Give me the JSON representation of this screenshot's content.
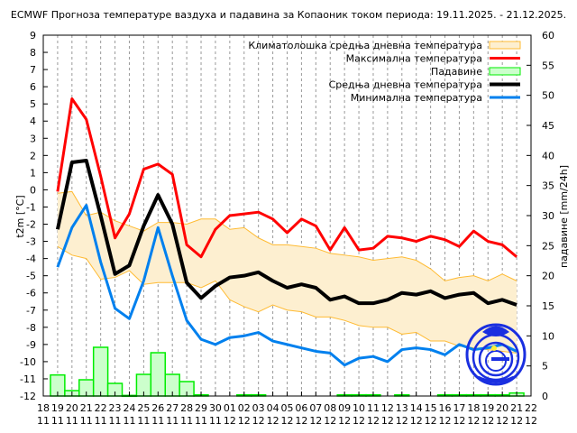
{
  "title": "ECMWF Прогноза температуре ваздуха и падавина за Копаоник током периода: 19.11.2025. - 21.12.2025.",
  "y_left_label": "t2m [°C]",
  "y_right_label": "падавине [mm/24h]",
  "legend": [
    {
      "label": "Климатолошка средња дневна температура",
      "color": "#ffbb33",
      "fill": "#fdefd0",
      "type": "band"
    },
    {
      "label": "Максимална температура",
      "color": "#ff0000",
      "type": "line"
    },
    {
      "label": "Падавине",
      "color": "#00ee00",
      "fill": "#ccffcc",
      "type": "bar"
    },
    {
      "label": "Средња дневна температура",
      "color": "#000000",
      "type": "line"
    },
    {
      "label": "Минимална температура",
      "color": "#0080ee",
      "type": "line"
    }
  ],
  "chart_data": {
    "type": "line",
    "title": "ECMWF Прогноза температуре ваздуха и падавина за Копаоник током периода: 19.11.2025. - 21.12.2025.",
    "xlabel": "",
    "ylabel": "t2m [°C]",
    "y2label": "падавине [mm/24h]",
    "ylim": [
      -12,
      9
    ],
    "y2lim": [
      0,
      60
    ],
    "grid": "vertical dashed at each day",
    "legend_position": "top-right",
    "x_ticks": [
      [
        "18",
        "11"
      ],
      [
        "19",
        "11"
      ],
      [
        "20",
        "11"
      ],
      [
        "21",
        "11"
      ],
      [
        "22",
        "11"
      ],
      [
        "23",
        "11"
      ],
      [
        "24",
        "11"
      ],
      [
        "25",
        "11"
      ],
      [
        "26",
        "11"
      ],
      [
        "27",
        "11"
      ],
      [
        "28",
        "11"
      ],
      [
        "29",
        "11"
      ],
      [
        "30",
        "11"
      ],
      [
        "01",
        "12"
      ],
      [
        "02",
        "12"
      ],
      [
        "03",
        "12"
      ],
      [
        "04",
        "12"
      ],
      [
        "05",
        "12"
      ],
      [
        "06",
        "12"
      ],
      [
        "07",
        "12"
      ],
      [
        "08",
        "12"
      ],
      [
        "09",
        "12"
      ],
      [
        "10",
        "12"
      ],
      [
        "11",
        "12"
      ],
      [
        "12",
        "12"
      ],
      [
        "13",
        "12"
      ],
      [
        "14",
        "12"
      ],
      [
        "15",
        "12"
      ],
      [
        "16",
        "12"
      ],
      [
        "17",
        "12"
      ],
      [
        "18",
        "12"
      ],
      [
        "19",
        "12"
      ],
      [
        "20",
        "12"
      ],
      [
        "21",
        "12"
      ],
      [
        "22",
        "12"
      ]
    ],
    "y_ticks": [
      9,
      8,
      7,
      6,
      5,
      4,
      3,
      2,
      1,
      0,
      -1,
      -2,
      -3,
      -4,
      -5,
      -6,
      -7,
      -8,
      -9,
      -10,
      -11,
      -12
    ],
    "y2_ticks": [
      60,
      55,
      50,
      45,
      40,
      35,
      30,
      25,
      20,
      15,
      10,
      5,
      0
    ],
    "x": [
      "19.11",
      "20.11",
      "21.11",
      "22.11",
      "23.11",
      "24.11",
      "25.11",
      "26.11",
      "27.11",
      "28.11",
      "29.11",
      "30.11",
      "01.12",
      "02.12",
      "03.12",
      "04.12",
      "05.12",
      "06.12",
      "07.12",
      "08.12",
      "09.12",
      "10.12",
      "11.12",
      "12.12",
      "13.12",
      "14.12",
      "15.12",
      "16.12",
      "17.12",
      "18.12",
      "19.12",
      "20.12",
      "21.12"
    ],
    "series": [
      {
        "name": "Максимална температура",
        "axis": "left",
        "values": [
          -0.1,
          5.3,
          4.1,
          0.8,
          -2.8,
          -1.4,
          1.2,
          1.5,
          0.9,
          -3.2,
          -3.9,
          -2.3,
          -1.5,
          -1.4,
          -1.3,
          -1.7,
          -2.5,
          -1.7,
          -2.1,
          -3.5,
          -2.2,
          -3.5,
          -3.4,
          -2.7,
          -2.8,
          -3.0,
          -2.7,
          -2.9,
          -3.3,
          -2.4,
          -3.0,
          -3.2,
          -3.9
        ]
      },
      {
        "name": "Средња дневна температура",
        "axis": "left",
        "values": [
          -2.3,
          1.6,
          1.7,
          -1.5,
          -4.9,
          -4.4,
          -2.1,
          -0.3,
          -2.0,
          -5.4,
          -6.3,
          -5.6,
          -5.1,
          -5.0,
          -4.8,
          -5.3,
          -5.7,
          -5.5,
          -5.7,
          -6.4,
          -6.2,
          -6.6,
          -6.6,
          -6.4,
          -6.0,
          -6.1,
          -5.9,
          -6.3,
          -6.1,
          -6.0,
          -6.6,
          -6.4,
          -6.7
        ]
      },
      {
        "name": "Минимална температура",
        "axis": "left",
        "values": [
          -4.5,
          -2.2,
          -0.9,
          -4.2,
          -6.9,
          -7.5,
          -5.3,
          -2.2,
          -5.0,
          -7.6,
          -8.7,
          -9.0,
          -8.6,
          -8.5,
          -8.3,
          -8.8,
          -9.0,
          -9.2,
          -9.4,
          -9.5,
          -10.2,
          -9.8,
          -9.7,
          -10.0,
          -9.3,
          -9.2,
          -9.3,
          -9.6,
          -9.0,
          -9.3,
          -9.2,
          -9.0,
          -9.4
        ]
      },
      {
        "name": "Климатолошка средња дневна температура (горња граница)",
        "axis": "left",
        "values": [
          -0.2,
          -0.1,
          -1.5,
          -1.3,
          -1.8,
          -2.1,
          -2.4,
          -1.9,
          -1.9,
          -2.0,
          -1.7,
          -1.7,
          -2.3,
          -2.2,
          -2.8,
          -3.2,
          -3.2,
          -3.3,
          -3.4,
          -3.7,
          -3.8,
          -3.9,
          -4.1,
          -4.0,
          -3.9,
          -4.1,
          -4.6,
          -5.3,
          -5.1,
          -5.0,
          -5.3,
          -4.9,
          -5.3
        ]
      },
      {
        "name": "Климатолошка средња дневна температура (доња граница)",
        "axis": "left",
        "values": [
          -3.3,
          -3.8,
          -4.0,
          -5.2,
          -5.1,
          -4.7,
          -5.5,
          -5.4,
          -5.4,
          -5.4,
          -5.7,
          -5.3,
          -6.4,
          -6.8,
          -7.1,
          -6.7,
          -7.0,
          -7.1,
          -7.4,
          -7.4,
          -7.6,
          -7.9,
          -8.0,
          -8.0,
          -8.4,
          -8.3,
          -8.8,
          -8.8,
          -9.1,
          -9.2,
          -9.3,
          -9.4,
          -9.5
        ]
      },
      {
        "name": "Падавине",
        "axis": "right",
        "type": "bar",
        "values": [
          3.5,
          0.9,
          2.7,
          8.1,
          2.1,
          0.1,
          3.6,
          7.2,
          3.6,
          2.4,
          0.2,
          0.0,
          0.0,
          0.2,
          0.2,
          0.0,
          0.0,
          0.0,
          0.0,
          0.0,
          0.2,
          0.2,
          0.2,
          0.0,
          0.2,
          0.0,
          0.0,
          0.2,
          0.2,
          0.2,
          0.2,
          0.2,
          0.5
        ]
      }
    ]
  }
}
